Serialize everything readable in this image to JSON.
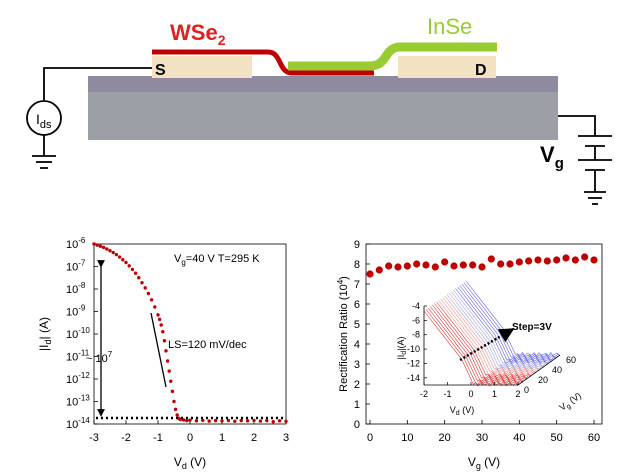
{
  "device": {
    "left_material": "WSe",
    "left_material_sub": "2",
    "right_material": "InSe",
    "source_label": "S",
    "drain_label": "D",
    "current_source_label": "I",
    "current_source_sub": "ds",
    "gate_label": "V",
    "gate_sub": "g",
    "colors": {
      "wse2": "#c00000",
      "inse": "#99cc33",
      "contact": "#f2e2c2",
      "substrate": "#9d9fa6",
      "oxide": "#8f8aa0"
    }
  },
  "chart_data": [
    {
      "type": "scatter",
      "title": "",
      "xlabel": "V",
      "xlabel_sub": "d",
      "xlabel_unit": " (V)",
      "ylabel": "|I",
      "ylabel_sub": "d",
      "ylabel_unit": "| (A)",
      "xlim": [
        -3,
        3
      ],
      "ylim_log10": [
        -14,
        -6
      ],
      "y_scale": "log",
      "x_ticks": [
        -3,
        -2,
        -1,
        0,
        1,
        2,
        3
      ],
      "y_tick_exponents": [
        -6,
        -7,
        -8,
        -9,
        -10,
        -11,
        -12,
        -13,
        -14
      ],
      "annotations": {
        "conditions": "V",
        "conditions_sub": "g",
        "conditions_rest": "=40 V  T=295 K",
        "slope": "LS=120 mV/dec",
        "ratio_prefix": "~ 10",
        "ratio_exp": "7"
      },
      "series": [
        {
          "color": "#c00000",
          "x": [
            -3.0,
            -2.9,
            -2.8,
            -2.7,
            -2.6,
            -2.5,
            -2.4,
            -2.3,
            -2.2,
            -2.1,
            -2.0,
            -1.9,
            -1.8,
            -1.7,
            -1.6,
            -1.5,
            -1.4,
            -1.3,
            -1.2,
            -1.1,
            -1.0,
            -0.95,
            -0.9,
            -0.85,
            -0.8,
            -0.75,
            -0.7,
            -0.65,
            -0.6,
            -0.55,
            -0.5,
            -0.45,
            -0.4,
            -0.35,
            -0.3,
            -0.2,
            -0.1,
            0.0,
            0.2,
            0.4,
            0.6,
            0.8,
            1.0,
            1.2,
            1.4,
            1.6,
            1.8,
            2.0,
            2.2,
            2.4,
            2.6,
            2.8,
            3.0
          ],
          "y_log10": [
            -6.0,
            -6.05,
            -6.1,
            -6.15,
            -6.22,
            -6.3,
            -6.38,
            -6.47,
            -6.58,
            -6.7,
            -6.82,
            -6.97,
            -7.13,
            -7.3,
            -7.5,
            -7.72,
            -7.95,
            -8.2,
            -8.48,
            -8.8,
            -9.15,
            -9.35,
            -9.6,
            -9.9,
            -10.3,
            -10.75,
            -11.2,
            -11.65,
            -12.1,
            -12.55,
            -13.0,
            -13.35,
            -13.6,
            -13.75,
            -13.8,
            -13.82,
            -13.85,
            -13.83,
            -13.86,
            -13.84,
            -13.87,
            -13.85,
            -13.86,
            -13.84,
            -13.88,
            -13.85,
            -13.86,
            -13.84,
            -13.87,
            -13.85,
            -13.9,
            -13.86,
            -13.88
          ]
        }
      ]
    },
    {
      "type": "scatter",
      "title": "",
      "xlabel": "V",
      "xlabel_sub": "g",
      "xlabel_unit": " (V)",
      "ylabel": "Rectification Ratio (10",
      "ylabel_sup": "4",
      "ylabel_unit": ")",
      "xlim": [
        0,
        60
      ],
      "ylim": [
        0,
        9
      ],
      "x_ticks": [
        0,
        10,
        20,
        30,
        40,
        50,
        60
      ],
      "y_ticks": [
        0,
        1,
        2,
        3,
        4,
        5,
        6,
        7,
        8,
        9
      ],
      "series": [
        {
          "color": "#c00000",
          "x": [
            0,
            2.5,
            5,
            7.5,
            10,
            12.5,
            15,
            17.5,
            20,
            22.5,
            25,
            27.5,
            30,
            32.5,
            35,
            37.5,
            40,
            42.5,
            45,
            47.5,
            50,
            52.5,
            55,
            57.5,
            60
          ],
          "y": [
            7.5,
            7.7,
            7.9,
            7.85,
            7.9,
            8.0,
            7.95,
            7.85,
            8.1,
            7.9,
            7.95,
            7.95,
            7.85,
            8.25,
            8.0,
            8.0,
            8.1,
            8.15,
            8.2,
            8.15,
            8.2,
            8.3,
            8.2,
            8.35,
            8.2
          ]
        }
      ],
      "inset": {
        "type": "3d-line",
        "xlabel": "V",
        "xlabel_sub": "d",
        "xlabel_unit": " (V)",
        "ylabel": "|I",
        "ylabel_sub": "d",
        "ylabel_unit": "|(A)",
        "zlabel": "V",
        "zlabel_sub": "g",
        "zlabel_unit": " (V)",
        "x_ticks": [
          -2,
          -1,
          0,
          1,
          2
        ],
        "y_ticks": [
          -4,
          -6,
          -8,
          -10,
          -12,
          -14
        ],
        "z_ticks": [
          0,
          20,
          40,
          60
        ],
        "annotation": "Step=3V",
        "colors": [
          "#e03030",
          "#f09090",
          "#a0a0e0",
          "#6060e0"
        ]
      }
    }
  ]
}
